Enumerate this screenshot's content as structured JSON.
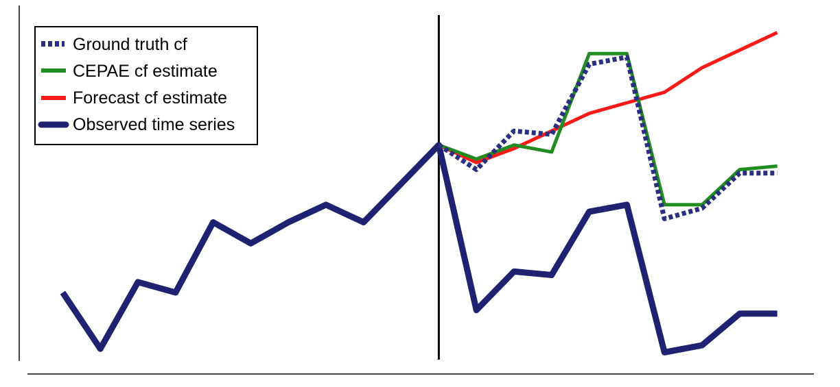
{
  "chart_data": {
    "type": "line",
    "title": "",
    "xlabel": "",
    "ylabel": "",
    "x": [
      0,
      1,
      2,
      3,
      4,
      5,
      6,
      7,
      8,
      9,
      10,
      11,
      12,
      13,
      14,
      15,
      16,
      17,
      18,
      19
    ],
    "xlim": [
      -0.5,
      19.5
    ],
    "ylim": [
      0,
      100
    ],
    "intervention_x": 10,
    "grid": false,
    "axes_visible": {
      "left": true,
      "bottom": true,
      "ticks": false
    },
    "legend": {
      "position": "top-left",
      "framed": true
    },
    "series": [
      {
        "name": "Ground truth cf",
        "color": "#2b2f7f",
        "style": "dotted",
        "x": [
          10,
          11,
          12,
          13,
          14,
          15,
          16,
          17,
          18,
          19
        ],
        "values": [
          64,
          57,
          68,
          67,
          87,
          89,
          43,
          46,
          56,
          56
        ]
      },
      {
        "name": "CEPAE cf estimate",
        "color": "#228b22",
        "style": "solid",
        "x": [
          10,
          11,
          12,
          13,
          14,
          15,
          16,
          17,
          18,
          19
        ],
        "values": [
          64,
          60,
          64,
          62,
          90,
          90,
          47,
          47,
          57,
          58
        ]
      },
      {
        "name": "Forecast cf estimate",
        "color": "#ff1a1a",
        "style": "solid",
        "x": [
          10,
          11,
          12,
          13,
          14,
          15,
          16,
          17,
          18,
          19
        ],
        "values": [
          64,
          59,
          63,
          68,
          73,
          76,
          79,
          86,
          91,
          96
        ]
      },
      {
        "name": "Observed time series",
        "color": "#1f2270",
        "style": "solid-thick",
        "x": [
          0,
          1,
          2,
          3,
          4,
          5,
          6,
          7,
          8,
          9,
          10,
          11,
          12,
          13,
          14,
          15,
          16,
          17,
          18,
          19
        ],
        "values": [
          22,
          6,
          25,
          22,
          42,
          36,
          42,
          47,
          42,
          53,
          64,
          17,
          28,
          27,
          45,
          47,
          5,
          7,
          16,
          16
        ]
      }
    ]
  }
}
